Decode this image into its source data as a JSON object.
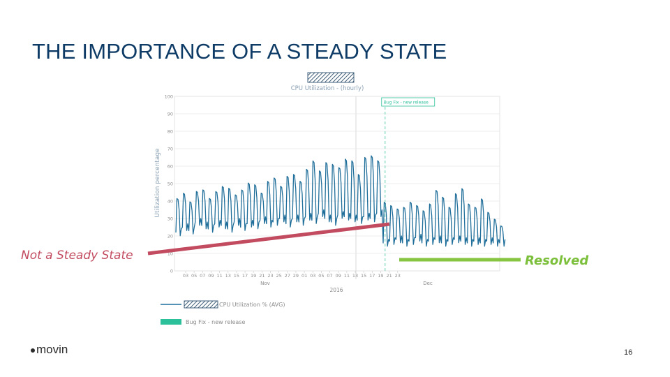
{
  "slide": {
    "title": "THE IMPORTANCE OF A STEADY STATE",
    "callout_left": "Not a Steady State",
    "callout_right": "Resolved",
    "logo_text": "movin",
    "page_number": "16"
  },
  "colors": {
    "title": "#0d3b66",
    "series": "#1f6e9a",
    "marker": "#2bbf9a",
    "callout_left": "#c24b60",
    "callout_right": "#7bbf3a",
    "grid": "#e6e6e6"
  },
  "chart_data": {
    "type": "line",
    "title": "CPU Utilization - (hourly)",
    "ylabel": "Utilization percentage",
    "xlabel": "2016",
    "ylim": [
      0,
      100
    ],
    "yticks": [
      0,
      10,
      20,
      30,
      40,
      50,
      60,
      70,
      80,
      90,
      100
    ],
    "x_tick_labels": [
      "03",
      "05",
      "07",
      "09",
      "11",
      "13",
      "15",
      "17",
      "19",
      "21",
      "23",
      "25",
      "27",
      "29",
      "01",
      "03",
      "05",
      "07",
      "09",
      "11",
      "13",
      "15",
      "17",
      "19",
      "21",
      "23"
    ],
    "month_labels": [
      "Nov",
      "Dec"
    ],
    "marker": {
      "label": "Bug Fix - new release",
      "day_index": 32.3
    },
    "legend": [
      {
        "label": "CPU Utilization % (AVG)",
        "kind": "line"
      },
      {
        "label": "Bug Fix - new release",
        "kind": "band"
      }
    ],
    "series": [
      {
        "name": "CPU Utilization % (AVG)",
        "x": [
          0,
          1,
          2,
          3,
          4,
          5,
          6,
          7,
          8,
          9,
          10,
          11,
          12,
          13,
          14,
          15,
          16,
          17,
          18,
          19,
          20,
          21,
          22,
          23,
          24,
          25,
          26,
          27,
          28,
          29,
          30,
          31,
          32,
          33,
          34,
          35,
          36,
          37,
          38,
          39,
          40,
          41,
          42,
          43,
          44,
          45,
          46,
          47,
          48,
          49,
          50
        ],
        "peaks": [
          42,
          45,
          40,
          46,
          47,
          42,
          46,
          49,
          48,
          44,
          47,
          51,
          50,
          45,
          52,
          54,
          49,
          55,
          56,
          52,
          59,
          64,
          58,
          63,
          62,
          60,
          65,
          64,
          56,
          66,
          67,
          64,
          40,
          38,
          36,
          37,
          40,
          38,
          35,
          39,
          47,
          43,
          37,
          45,
          48,
          39,
          37,
          42,
          34,
          30,
          26
        ],
        "troughs": [
          22,
          25,
          23,
          28,
          26,
          24,
          27,
          26,
          24,
          28,
          25,
          27,
          26,
          29,
          27,
          28,
          30,
          27,
          30,
          28,
          31,
          29,
          33,
          30,
          28,
          32,
          31,
          30,
          29,
          31,
          30,
          33,
          16,
          17,
          18,
          16,
          17,
          19,
          16,
          17,
          18,
          16,
          17,
          18,
          17,
          16,
          17,
          16,
          17,
          16,
          16
        ]
      }
    ]
  }
}
